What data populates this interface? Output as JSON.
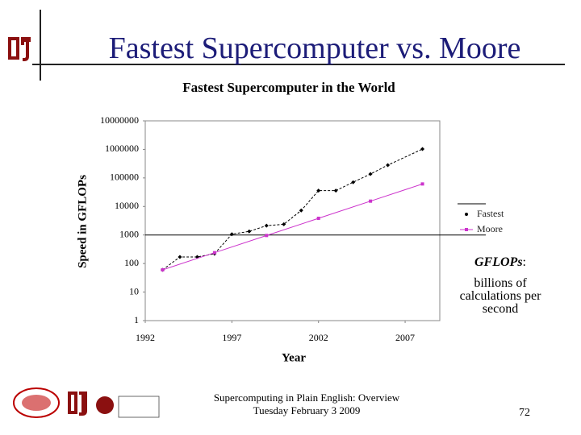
{
  "slide": {
    "title": "Fastest Supercomputer vs. Moore",
    "note": {
      "term": "GFLOPs",
      "punct": ":",
      "definition": "billions of calculations per second"
    },
    "footer": [
      "Supercomputing in Plain English: Overview",
      "Tuesday February 3 2009"
    ],
    "page_number": "72"
  },
  "chart_data": {
    "type": "line",
    "title": "Fastest Supercomputer in the World",
    "x_label": "Year",
    "y_label": "Speed in GFLOPs",
    "log_y": true,
    "legend": "right",
    "xlim": [
      1992,
      2009
    ],
    "xticks": [
      1992,
      1997,
      2002,
      2007
    ],
    "ylim": [
      1,
      10000000
    ],
    "yticks": [
      1,
      10,
      100,
      1000,
      10000,
      100000,
      1000000,
      10000000
    ],
    "series": [
      {
        "name": "Fastest",
        "color": "#000000",
        "dash": true,
        "marker": "diamond",
        "x": [
          1993,
          1994,
          1995,
          1996,
          1997,
          1998,
          1999,
          2000,
          2001,
          2002,
          2003,
          2004,
          2005,
          2006,
          2008
        ],
        "values": [
          60,
          170,
          170,
          220,
          1068,
          1338,
          2121,
          2379,
          7226,
          35860,
          35860,
          70720,
          136800,
          280600,
          1026000
        ]
      },
      {
        "name": "Moore",
        "color": "#cc33cc",
        "dash": false,
        "marker": "square",
        "x": [
          1993,
          1996,
          1999,
          2002,
          2005,
          2008
        ],
        "values": [
          60,
          240,
          960,
          3840,
          15360,
          61440
        ]
      }
    ]
  }
}
